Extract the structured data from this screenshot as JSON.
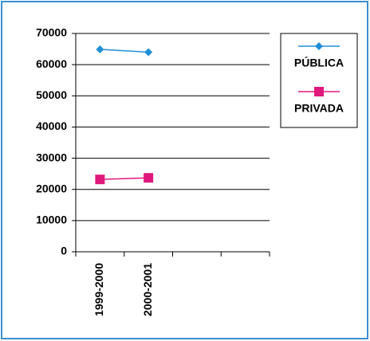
{
  "chart_data": {
    "type": "line",
    "categories": [
      "1999-2000",
      "2000-2001",
      null,
      null
    ],
    "series": [
      {
        "name": "PÚBLICA",
        "color": "#1f8fd6",
        "marker": "diamond",
        "values": [
          64900,
          64000,
          null,
          null
        ]
      },
      {
        "name": "PRIVADA",
        "color": "#e0187c",
        "marker": "square",
        "values": [
          23200,
          23700,
          null,
          null
        ]
      }
    ],
    "ylim": [
      0,
      70000
    ],
    "yticks": [
      0,
      10000,
      20000,
      30000,
      40000,
      50000,
      60000,
      70000
    ],
    "grid": true,
    "legend": "right"
  }
}
